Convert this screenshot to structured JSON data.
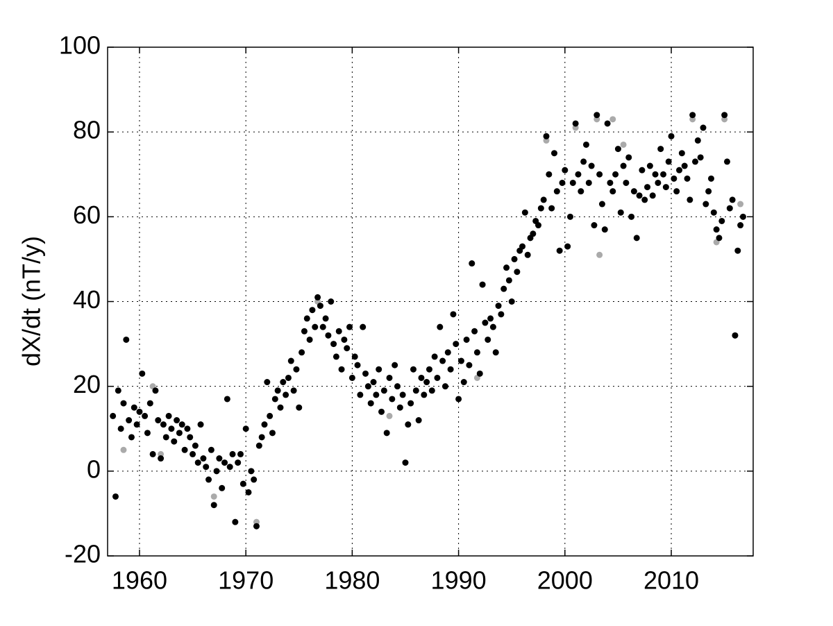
{
  "chart_data": {
    "type": "scatter",
    "ylabel": "dX/dt (nT/y)",
    "xlim": [
      1957,
      2017.7
    ],
    "ylim": [
      -20,
      100
    ],
    "xticks": [
      1960,
      1970,
      1980,
      1990,
      2000,
      2010
    ],
    "yticks": [
      -20,
      0,
      20,
      40,
      60,
      80,
      100
    ],
    "grid": true,
    "series": [
      {
        "color": "#aaaaaa",
        "x": [
          1958.5,
          1961.25,
          1962,
          1967,
          1971,
          1976.75,
          1983.5,
          1991.75,
          1992.25,
          1998.25,
          2001,
          2003,
          2003.25,
          2004.5,
          2005.5,
          2012,
          2014.25,
          2015,
          2016,
          2016.5
        ],
        "values": [
          5,
          20,
          4,
          -6,
          -12,
          40,
          13,
          22,
          44,
          78,
          81,
          83,
          51,
          83,
          77,
          83,
          54,
          83,
          32,
          63
        ]
      },
      {
        "color": "#000000",
        "x": [
          1957.5,
          1957.75,
          1958,
          1958.25,
          1958.5,
          1958.75,
          1959,
          1959.25,
          1959.5,
          1959.75,
          1960,
          1960.25,
          1960.5,
          1960.75,
          1961,
          1961.25,
          1961.5,
          1961.75,
          1962,
          1962.25,
          1962.5,
          1962.75,
          1963,
          1963.25,
          1963.5,
          1963.75,
          1964,
          1964.25,
          1964.5,
          1964.75,
          1965,
          1965.25,
          1965.5,
          1965.75,
          1966,
          1966.25,
          1966.5,
          1966.75,
          1967,
          1967.25,
          1967.5,
          1967.75,
          1968,
          1968.25,
          1968.5,
          1968.75,
          1969,
          1969.25,
          1969.5,
          1969.75,
          1970,
          1970.25,
          1970.5,
          1970.75,
          1971,
          1971.25,
          1971.5,
          1971.75,
          1972,
          1972.25,
          1972.5,
          1972.75,
          1973,
          1973.25,
          1973.5,
          1973.75,
          1974,
          1974.25,
          1974.5,
          1974.75,
          1975,
          1975.25,
          1975.5,
          1975.75,
          1976,
          1976.25,
          1976.5,
          1976.75,
          1977,
          1977.25,
          1977.5,
          1977.75,
          1978,
          1978.25,
          1978.5,
          1978.75,
          1979,
          1979.25,
          1979.5,
          1979.75,
          1980,
          1980.25,
          1980.5,
          1980.75,
          1981,
          1981.25,
          1981.5,
          1981.75,
          1982,
          1982.25,
          1982.5,
          1982.75,
          1983,
          1983.25,
          1983.5,
          1983.75,
          1984,
          1984.25,
          1984.5,
          1984.75,
          1985,
          1985.25,
          1985.5,
          1985.75,
          1986,
          1986.25,
          1986.5,
          1986.75,
          1987,
          1987.25,
          1987.5,
          1987.75,
          1988,
          1988.25,
          1988.5,
          1988.75,
          1989,
          1989.25,
          1989.5,
          1989.75,
          1990,
          1990.25,
          1990.5,
          1990.75,
          1991,
          1991.25,
          1991.5,
          1991.75,
          1992,
          1992.25,
          1992.5,
          1992.75,
          1993,
          1993.25,
          1993.5,
          1993.75,
          1994,
          1994.25,
          1994.5,
          1994.75,
          1995,
          1995.25,
          1995.5,
          1995.75,
          1996,
          1996.25,
          1996.5,
          1996.75,
          1997,
          1997.25,
          1997.5,
          1997.75,
          1998,
          1998.25,
          1998.5,
          1998.75,
          1999,
          1999.25,
          1999.5,
          1999.75,
          2000,
          2000.25,
          2000.5,
          2000.75,
          2001,
          2001.25,
          2001.5,
          2001.75,
          2002,
          2002.25,
          2002.5,
          2002.75,
          2003,
          2003.25,
          2003.5,
          2003.75,
          2004,
          2004.25,
          2004.5,
          2004.75,
          2005,
          2005.25,
          2005.5,
          2005.75,
          2006,
          2006.25,
          2006.5,
          2006.75,
          2007,
          2007.25,
          2007.5,
          2007.75,
          2008,
          2008.25,
          2008.5,
          2008.75,
          2009,
          2009.25,
          2009.5,
          2009.75,
          2010,
          2010.25,
          2010.5,
          2010.75,
          2011,
          2011.25,
          2011.5,
          2011.75,
          2012,
          2012.25,
          2012.5,
          2012.75,
          2013,
          2013.25,
          2013.5,
          2013.75,
          2014,
          2014.25,
          2014.5,
          2014.75,
          2015,
          2015.25,
          2015.5,
          2015.75,
          2016,
          2016.25,
          2016.5,
          2016.75
        ],
        "values": [
          13,
          -6,
          19,
          10,
          16,
          31,
          12,
          8,
          15,
          11,
          14,
          23,
          13,
          9,
          16,
          4,
          19,
          12,
          3,
          11,
          8,
          13,
          10,
          7,
          12,
          9,
          11,
          5,
          10,
          8,
          4,
          6,
          2,
          11,
          3,
          1,
          -2,
          5,
          -8,
          0,
          3,
          -4,
          2,
          17,
          1,
          4,
          -12,
          2,
          4,
          -3,
          10,
          -5,
          0,
          -2,
          -13,
          6,
          8,
          11,
          21,
          13,
          9,
          17,
          19,
          15,
          21,
          18,
          22,
          26,
          19,
          24,
          15,
          28,
          33,
          36,
          31,
          38,
          34,
          41,
          39,
          34,
          36,
          32,
          40,
          30,
          27,
          33,
          24,
          31,
          29,
          34,
          22,
          27,
          25,
          18,
          34,
          23,
          20,
          16,
          21,
          18,
          24,
          14,
          19,
          9,
          22,
          17,
          25,
          20,
          15,
          18,
          2,
          11,
          16,
          24,
          19,
          12,
          22,
          18,
          21,
          24,
          19,
          27,
          22,
          34,
          26,
          20,
          28,
          24,
          37,
          30,
          17,
          26,
          21,
          31,
          25,
          49,
          33,
          28,
          23,
          44,
          35,
          31,
          36,
          34,
          28,
          39,
          37,
          43,
          48,
          45,
          40,
          50,
          47,
          52,
          53,
          61,
          51,
          55,
          56,
          59,
          58,
          62,
          64,
          79,
          70,
          62,
          75,
          66,
          52,
          68,
          71,
          53,
          60,
          68,
          82,
          70,
          66,
          73,
          77,
          68,
          72,
          58,
          84,
          70,
          63,
          57,
          82,
          68,
          66,
          70,
          76,
          61,
          72,
          68,
          74,
          60,
          66,
          55,
          65,
          71,
          64,
          67,
          72,
          65,
          70,
          68,
          76,
          70,
          67,
          73,
          79,
          69,
          66,
          71,
          75,
          72,
          69,
          64,
          84,
          73,
          78,
          74,
          81,
          63,
          66,
          69,
          61,
          57,
          55,
          59,
          84,
          73,
          62,
          64,
          32,
          52,
          58,
          60
        ]
      }
    ]
  }
}
